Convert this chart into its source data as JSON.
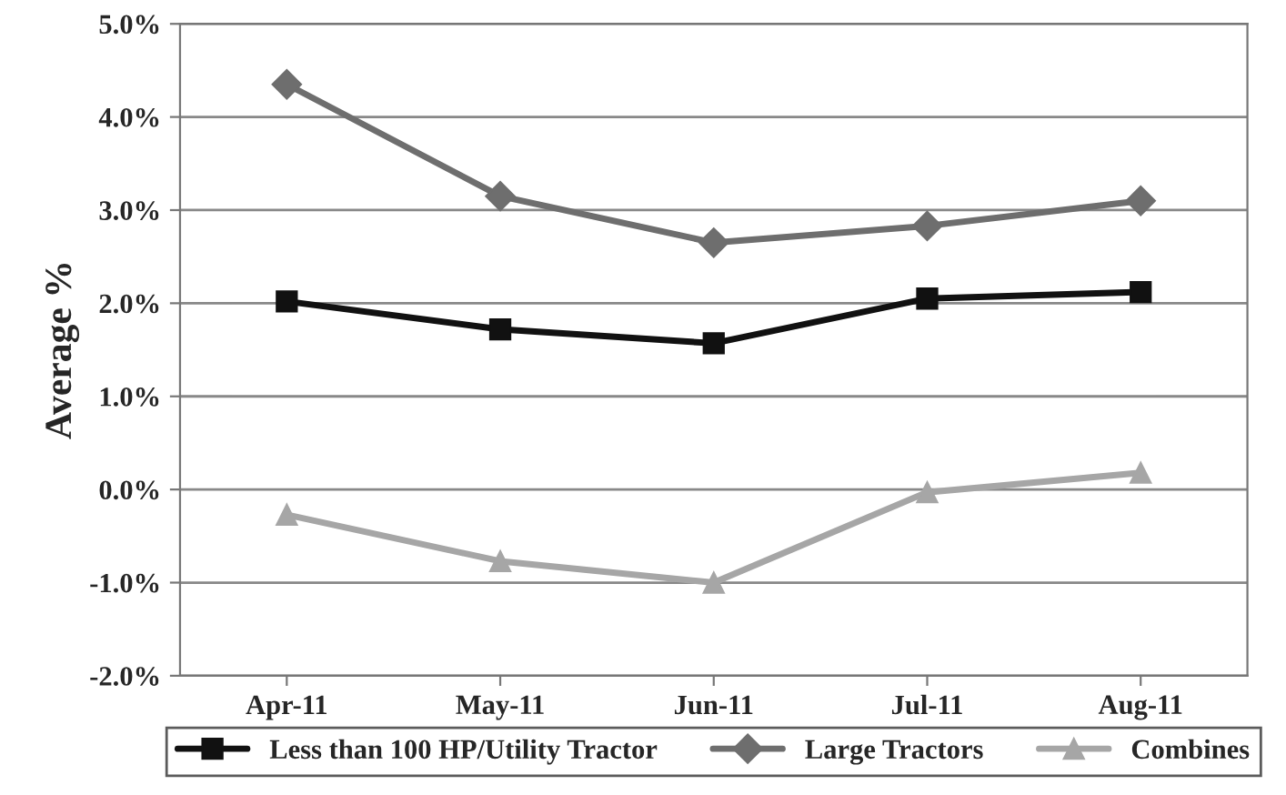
{
  "chart_data": {
    "type": "line",
    "ylabel": "Average %",
    "categories": [
      "Apr-11",
      "May-11",
      "Jun-11",
      "Jul-11",
      "Aug-11"
    ],
    "series": [
      {
        "name": "Less than 100 HP/Utility Tractor",
        "color": "#111111",
        "marker": "square",
        "values": [
          2.02,
          1.72,
          1.57,
          2.05,
          2.12
        ]
      },
      {
        "name": "Large Tractors",
        "color": "#6e6e6e",
        "marker": "diamond",
        "values": [
          4.35,
          3.15,
          2.65,
          2.83,
          3.1
        ]
      },
      {
        "name": "Combines",
        "color": "#a6a6a6",
        "marker": "triangle",
        "values": [
          -0.27,
          -0.77,
          -1.0,
          -0.03,
          0.18
        ]
      }
    ],
    "ylim": [
      -2,
      5
    ],
    "yticks": [
      {
        "value": -2,
        "label": "-2.0%"
      },
      {
        "value": -1,
        "label": "-1.0%"
      },
      {
        "value": 0,
        "label": "0.0%"
      },
      {
        "value": 1,
        "label": "1.0%"
      },
      {
        "value": 2,
        "label": "2.0%"
      },
      {
        "value": 3,
        "label": "3.0%"
      },
      {
        "value": 4,
        "label": "4.0%"
      },
      {
        "value": 5,
        "label": "5.0%"
      }
    ],
    "grid": "y",
    "legend": "bottom",
    "line_style": "solid"
  }
}
